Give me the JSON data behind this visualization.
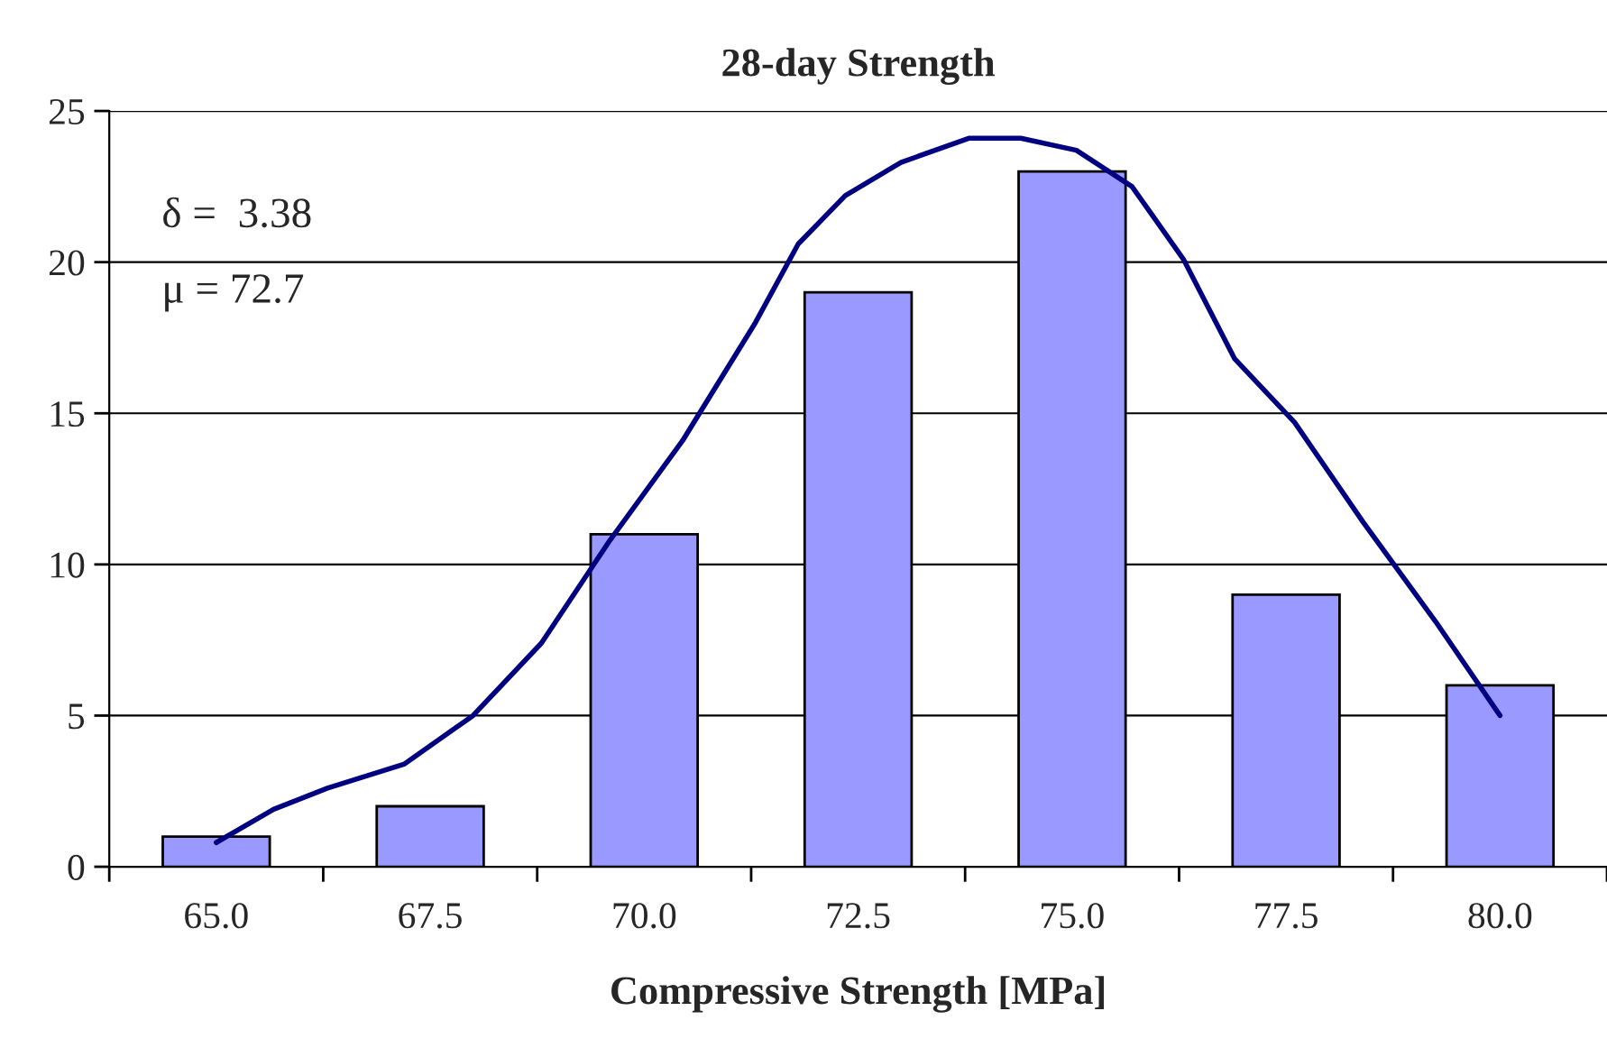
{
  "chart_data": {
    "type": "bar",
    "title": "28-day Strength",
    "xlabel": "Compressive Strength [MPa]",
    "x": [
      65,
      67.5,
      70,
      72.5,
      75,
      77.5,
      80
    ],
    "series": [
      {
        "color": "#9999ff",
        "values": [
          1,
          2,
          11,
          19,
          23,
          9,
          6
        ]
      },
      {
        "type": "line",
        "color": "#000080",
        "x": [
          65,
          65.67,
          66.3,
          67.2,
          68.0,
          68.8,
          69.6,
          70.45,
          71.3,
          71.8,
          72.35,
          73.0,
          73.8,
          74.4,
          75.05,
          75.7,
          76.3,
          76.9,
          77.6,
          78.4,
          79.25,
          80.0
        ],
        "values": [
          0.8,
          1.9,
          2.6,
          3.4,
          5.0,
          7.4,
          10.8,
          14.1,
          18.0,
          20.6,
          22.2,
          23.3,
          24.1,
          24.1,
          23.7,
          22.5,
          20.1,
          16.8,
          14.7,
          11.4,
          8.1,
          5.0
        ]
      }
    ],
    "xlim": [
      63.75,
      81.25
    ],
    "xticks": [
      {
        "value": 63.75,
        "label": null
      },
      {
        "value": 65,
        "label": "65.0"
      },
      {
        "value": 66.25,
        "label": null
      },
      {
        "value": 67.5,
        "label": "67.5"
      },
      {
        "value": 68.75,
        "label": null
      },
      {
        "value": 70,
        "label": "70.0"
      },
      {
        "value": 71.25,
        "label": null
      },
      {
        "value": 72.5,
        "label": "72.5"
      },
      {
        "value": 73.75,
        "label": null
      },
      {
        "value": 75,
        "label": "75.0"
      },
      {
        "value": 76.25,
        "label": null
      },
      {
        "value": 77.5,
        "label": "77.5"
      },
      {
        "value": 78.75,
        "label": null
      },
      {
        "value": 80,
        "label": "80.0"
      },
      {
        "value": 81.25,
        "label": null
      }
    ],
    "ylim": [
      0,
      25
    ],
    "yticks": [
      0,
      5,
      10,
      15,
      20,
      25
    ],
    "grid": "y",
    "annotations": [
      "δ =  3.38",
      "μ = 72.7"
    ]
  }
}
